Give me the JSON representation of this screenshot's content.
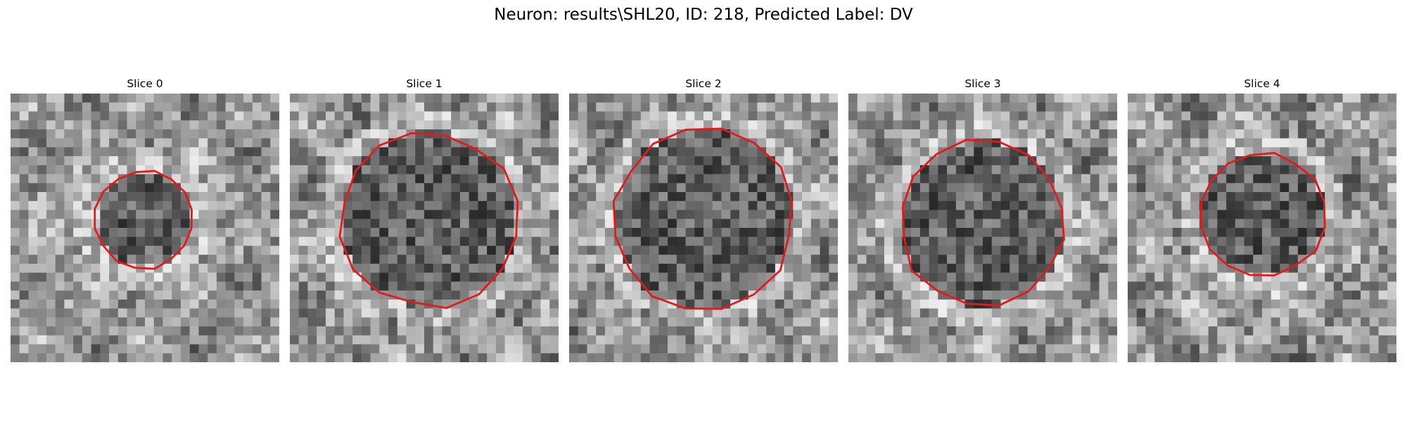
{
  "figure": {
    "title": "Neuron: results\\SHL20, ID: 218, Predicted Label: DV"
  },
  "outline_color": "#e31a1c",
  "panels": [
    {
      "title": "Slice 0",
      "seed": 11,
      "contour": {
        "cx": 15,
        "cy": 14,
        "r": 5.5
      }
    },
    {
      "title": "Slice 1",
      "seed": 23,
      "contour": {
        "cx": 15.5,
        "cy": 14,
        "r": 9.8
      }
    },
    {
      "title": "Slice 2",
      "seed": 37,
      "contour": {
        "cx": 15,
        "cy": 14,
        "r": 10.0
      }
    },
    {
      "title": "Slice 3",
      "seed": 51,
      "contour": {
        "cx": 15,
        "cy": 14.5,
        "r": 9.2
      }
    },
    {
      "title": "Slice 4",
      "seed": 67,
      "contour": {
        "cx": 15,
        "cy": 13.5,
        "r": 7.0
      }
    }
  ]
}
